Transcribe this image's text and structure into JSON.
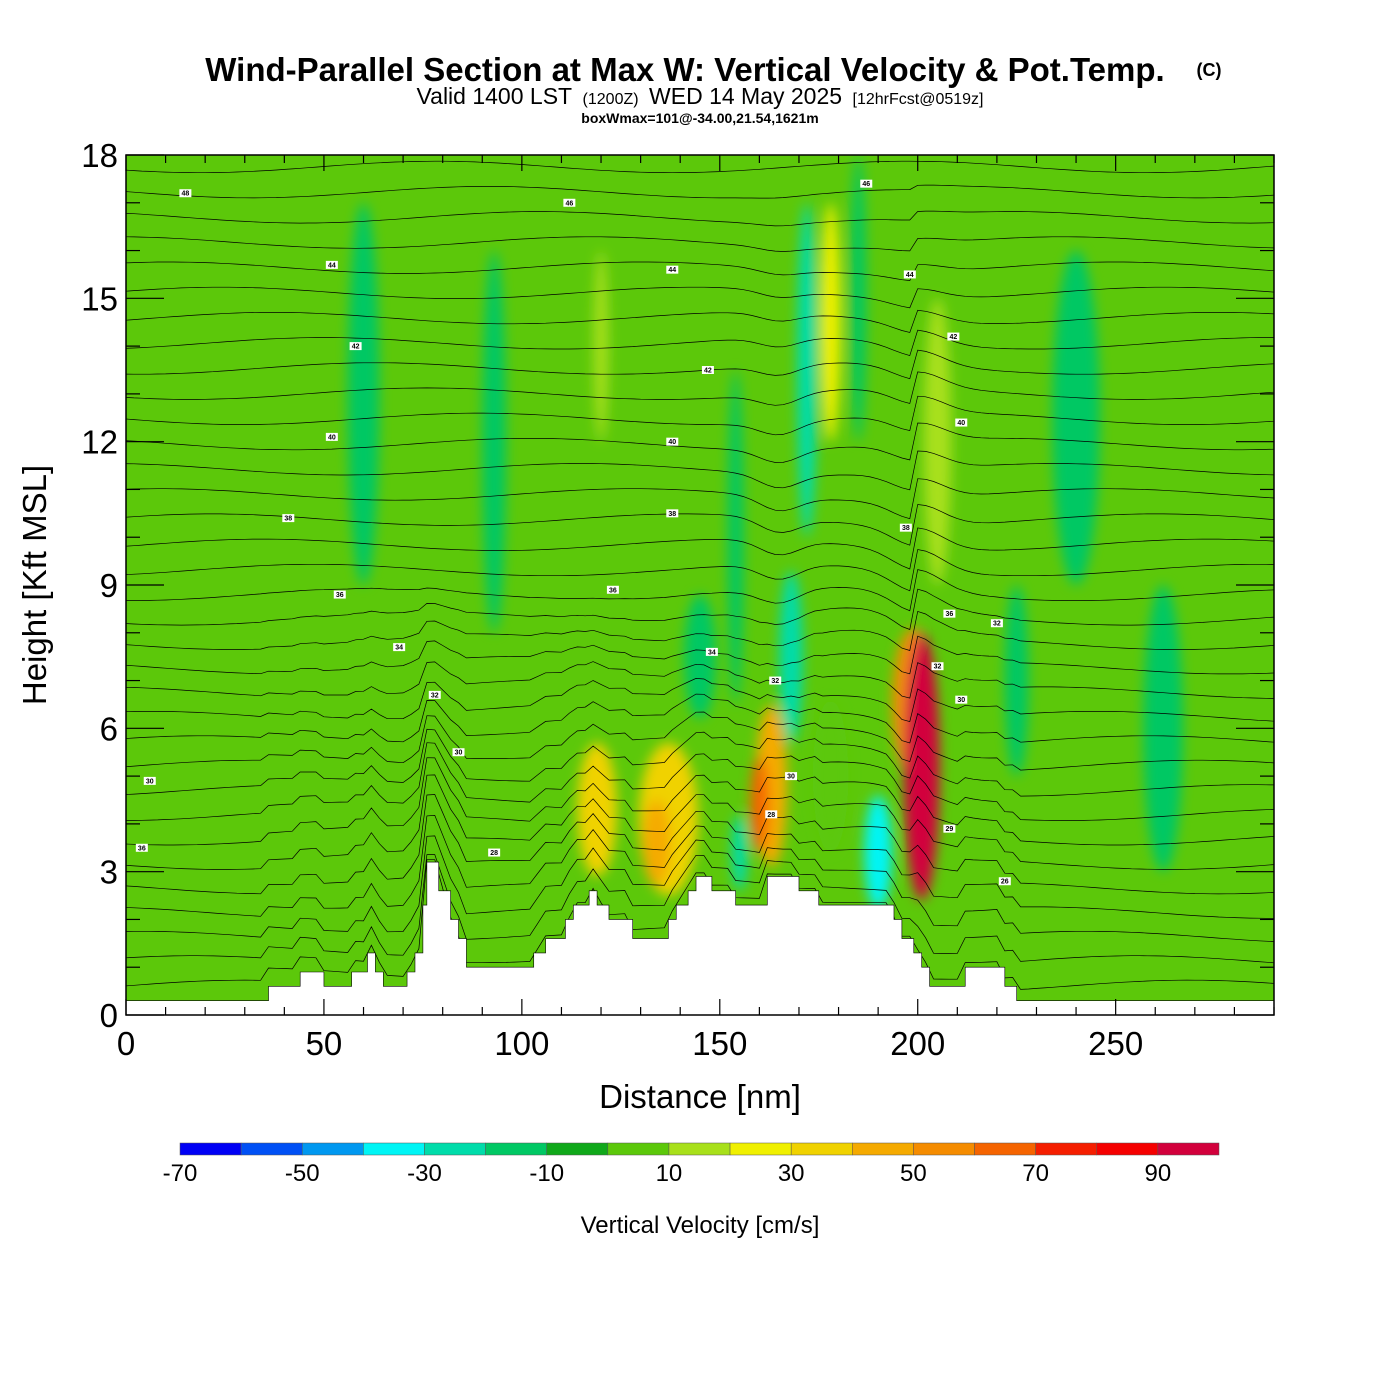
{
  "chart_data": {
    "type": "heatmap",
    "title": "Wind-Parallel Section at Max W: Vertical Velocity & Pot.Temp.",
    "title_mark": "(C)",
    "subtitle": {
      "valid": "Valid 1400 LST",
      "utc": "(1200Z)",
      "date": "WED 14 May 2025",
      "forecast": "[12hrFcst@0519z]"
    },
    "note": "boxWmax=101@-34.00,21.54,1621m",
    "xlabel": "Distance [nm]",
    "ylabel": "Height [Kft MSL]",
    "xlim": [
      0,
      290
    ],
    "ylim": [
      0,
      18
    ],
    "x_ticks": [
      0,
      50,
      100,
      150,
      200,
      250
    ],
    "x_tick_labels": [
      "0",
      "50",
      "100",
      "150",
      "200",
      "250"
    ],
    "y_ticks": [
      0,
      3,
      6,
      9,
      12,
      15,
      18
    ],
    "y_tick_labels": [
      "0",
      "3",
      "6",
      "9",
      "12",
      "15",
      "18"
    ],
    "grid": false,
    "colorbar": {
      "title": "Vertical Velocity [cm/s]",
      "levels": [
        -70,
        -60,
        -50,
        -40,
        -30,
        -20,
        -10,
        0,
        10,
        20,
        30,
        40,
        50,
        60,
        70,
        80,
        90,
        100
      ],
      "labels": [
        "-70",
        "-50",
        "-30",
        "-10",
        "10",
        "30",
        "50",
        "70",
        "90"
      ],
      "label_values": [
        -70,
        -50,
        -30,
        -10,
        10,
        30,
        50,
        70,
        90
      ],
      "colors": [
        "#0000f5",
        "#0050f5",
        "#0098f0",
        "#00f5f5",
        "#00dcaa",
        "#00c864",
        "#10a81a",
        "#5cc80a",
        "#a8e01a",
        "#f0f000",
        "#f0d200",
        "#f5aa00",
        "#f58c00",
        "#f56400",
        "#f51e00",
        "#f50000",
        "#d2003c"
      ]
    },
    "background_color": "#5cc80a",
    "terrain": {
      "x": [
        0,
        35,
        36,
        37,
        40,
        44,
        48,
        50,
        54,
        57,
        61,
        63,
        65,
        67,
        71,
        73,
        75,
        76,
        79,
        82,
        84,
        86,
        90,
        95,
        99,
        100,
        103,
        106,
        109,
        111,
        113,
        117,
        119,
        122,
        126,
        128,
        132,
        137,
        139,
        142,
        144,
        148,
        151,
        154,
        160,
        162,
        168,
        170,
        175,
        177,
        182,
        187,
        192,
        194,
        196,
        199,
        201,
        203,
        209,
        212,
        218,
        222,
        225,
        290
      ],
      "height": [
        0.3,
        0.3,
        0.6,
        0.6,
        0.6,
        0.9,
        0.9,
        0.6,
        0.6,
        0.9,
        1.3,
        0.9,
        0.6,
        0.6,
        0.9,
        1.3,
        2.3,
        3.2,
        2.6,
        2.0,
        1.6,
        1.0,
        1.0,
        1.0,
        1.0,
        1.0,
        1.3,
        1.6,
        1.6,
        2.0,
        2.3,
        2.6,
        2.3,
        2.0,
        2.0,
        1.6,
        1.6,
        2.0,
        2.3,
        2.6,
        2.9,
        2.6,
        2.6,
        2.3,
        2.3,
        2.9,
        2.9,
        2.6,
        2.3,
        2.3,
        2.3,
        2.3,
        2.3,
        2.0,
        1.6,
        1.3,
        1.0,
        0.6,
        0.6,
        1.0,
        1.0,
        0.6,
        0.3,
        0.3
      ]
    },
    "w_cells": [
      {
        "x": 178,
        "y": 5.0,
        "rx": 4.5,
        "ry": 1.6,
        "w": 6
      },
      {
        "x": 190,
        "y": 3.4,
        "rx": 3.5,
        "ry": 1.2,
        "w": -40
      },
      {
        "x": 201,
        "y": 5.2,
        "rx": 4.5,
        "ry": 2.8,
        "w": 96
      },
      {
        "x": 199,
        "y": 6.5,
        "rx": 5.5,
        "ry": 1.6,
        "w": 55
      },
      {
        "x": 201,
        "y": 4.2,
        "rx": 4.0,
        "ry": 1.6,
        "w": 75
      },
      {
        "x": 163,
        "y": 4.8,
        "rx": 4.0,
        "ry": 1.7,
        "w": 48
      },
      {
        "x": 160,
        "y": 4.4,
        "rx": 2.3,
        "ry": 1.0,
        "w": 60
      },
      {
        "x": 137,
        "y": 4.1,
        "rx": 7.5,
        "ry": 1.6,
        "w": 35
      },
      {
        "x": 134,
        "y": 3.6,
        "rx": 3.5,
        "ry": 0.9,
        "w": 48
      },
      {
        "x": 119,
        "y": 4.3,
        "rx": 5.0,
        "ry": 1.4,
        "w": 32
      },
      {
        "x": 168,
        "y": 7.5,
        "rx": 3.0,
        "ry": 1.8,
        "w": -30
      },
      {
        "x": 172,
        "y": 13.5,
        "rx": 2.5,
        "ry": 3.5,
        "w": -22
      },
      {
        "x": 155,
        "y": 3.4,
        "rx": 2.0,
        "ry": 0.8,
        "w": -25
      },
      {
        "x": 178,
        "y": 14.5,
        "rx": 2.5,
        "ry": 2.5,
        "w": 28
      },
      {
        "x": 205,
        "y": 12.0,
        "rx": 3.5,
        "ry": 3.0,
        "w": 16
      },
      {
        "x": 154,
        "y": 10.0,
        "rx": 2.0,
        "ry": 3.5,
        "w": -14
      },
      {
        "x": 120,
        "y": 14.0,
        "rx": 1.8,
        "ry": 2.0,
        "w": 16
      },
      {
        "x": 93,
        "y": 12.0,
        "rx": 3.0,
        "ry": 4.0,
        "w": -12
      },
      {
        "x": 60,
        "y": 13.0,
        "rx": 4.0,
        "ry": 4.0,
        "w": -12
      },
      {
        "x": 240,
        "y": 12.5,
        "rx": 6.0,
        "ry": 3.5,
        "w": -12
      },
      {
        "x": 262,
        "y": 6.0,
        "rx": 5.0,
        "ry": 3.0,
        "w": -12
      },
      {
        "x": 225,
        "y": 7.0,
        "rx": 3.0,
        "ry": 2.0,
        "w": -12
      },
      {
        "x": 145,
        "y": 7.5,
        "rx": 4.0,
        "ry": 1.3,
        "w": -12
      },
      {
        "x": 185,
        "y": 15.0,
        "rx": 2.0,
        "ry": 3.0,
        "w": -14
      }
    ],
    "isentrope_labels": [
      {
        "x": 15,
        "y": 17.2,
        "label": "48"
      },
      {
        "x": 112,
        "y": 17.0,
        "label": "46"
      },
      {
        "x": 187,
        "y": 17.4,
        "label": "46"
      },
      {
        "x": 52,
        "y": 15.7,
        "label": "44"
      },
      {
        "x": 138,
        "y": 15.6,
        "label": "44"
      },
      {
        "x": 198,
        "y": 15.5,
        "label": "44"
      },
      {
        "x": 58,
        "y": 14.0,
        "label": "42"
      },
      {
        "x": 147,
        "y": 13.5,
        "label": "42"
      },
      {
        "x": 209,
        "y": 14.2,
        "label": "42"
      },
      {
        "x": 52,
        "y": 12.1,
        "label": "40"
      },
      {
        "x": 138,
        "y": 12.0,
        "label": "40"
      },
      {
        "x": 211,
        "y": 12.4,
        "label": "40"
      },
      {
        "x": 41,
        "y": 10.4,
        "label": "38"
      },
      {
        "x": 138,
        "y": 10.5,
        "label": "38"
      },
      {
        "x": 197,
        "y": 10.2,
        "label": "38"
      },
      {
        "x": 54,
        "y": 8.8,
        "label": "36"
      },
      {
        "x": 123,
        "y": 8.9,
        "label": "36"
      },
      {
        "x": 208,
        "y": 8.4,
        "label": "36"
      },
      {
        "x": 220,
        "y": 8.2,
        "label": "32"
      },
      {
        "x": 69,
        "y": 7.7,
        "label": "34"
      },
      {
        "x": 148,
        "y": 7.6,
        "label": "34"
      },
      {
        "x": 205,
        "y": 7.3,
        "label": "32"
      },
      {
        "x": 78,
        "y": 6.7,
        "label": "32"
      },
      {
        "x": 164,
        "y": 7.0,
        "label": "32"
      },
      {
        "x": 211,
        "y": 6.6,
        "label": "30"
      },
      {
        "x": 84,
        "y": 5.5,
        "label": "30"
      },
      {
        "x": 168,
        "y": 5.0,
        "label": "30"
      },
      {
        "x": 6,
        "y": 4.9,
        "label": "30"
      },
      {
        "x": 163,
        "y": 4.2,
        "label": "28"
      },
      {
        "x": 208,
        "y": 3.9,
        "label": "29"
      },
      {
        "x": 4,
        "y": 3.5,
        "label": "36"
      },
      {
        "x": 93,
        "y": 3.4,
        "label": "28"
      },
      {
        "x": 222,
        "y": 2.8,
        "label": "26"
      }
    ]
  }
}
